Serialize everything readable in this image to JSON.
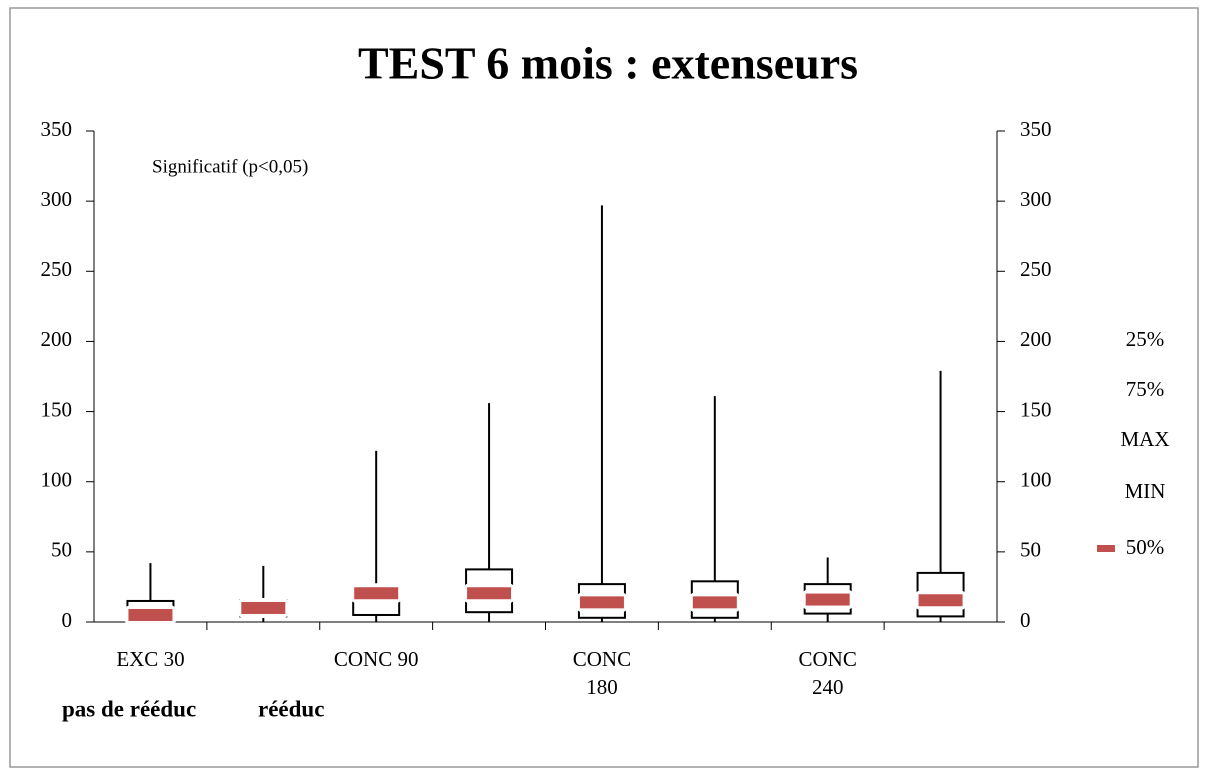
{
  "chart_data": {
    "type": "box",
    "title": "TEST 6 mois : extenseurs",
    "annotation": "Significatif (p<0,05)",
    "group_labels": [
      "pas de rééduc",
      "rééduc"
    ],
    "categories": [
      "EXC 30",
      null,
      "CONC 90",
      null,
      "CONC\n180",
      null,
      "CONC\n240",
      null
    ],
    "series": [
      {
        "name": "25%",
        "color": "#000000",
        "values": [
          0,
          4,
          5,
          7,
          3,
          3,
          6,
          4
        ]
      },
      {
        "name": "75%",
        "color": "#000000",
        "values": [
          15,
          15.5,
          25,
          37.5,
          27,
          29,
          27,
          35
        ]
      },
      {
        "name": "MAX",
        "color": "#000000",
        "values": [
          42,
          40,
          122,
          156,
          297,
          161,
          46,
          179
        ]
      },
      {
        "name": "MIN",
        "color": "#000000",
        "values": [
          0,
          0,
          0,
          0,
          0,
          0,
          0,
          0
        ]
      },
      {
        "name": "50%",
        "color": "#c0504d",
        "values": [
          5,
          10,
          20.5,
          20.5,
          14,
          14,
          16,
          15.5
        ]
      }
    ],
    "ylim": [
      0,
      350
    ],
    "yticks": [
      0,
      50,
      100,
      150,
      200,
      250,
      300,
      350
    ],
    "y2lim": [
      0,
      350
    ],
    "y2ticks": [
      0,
      50,
      100,
      150,
      200,
      250,
      300,
      350
    ],
    "legend": "right"
  }
}
